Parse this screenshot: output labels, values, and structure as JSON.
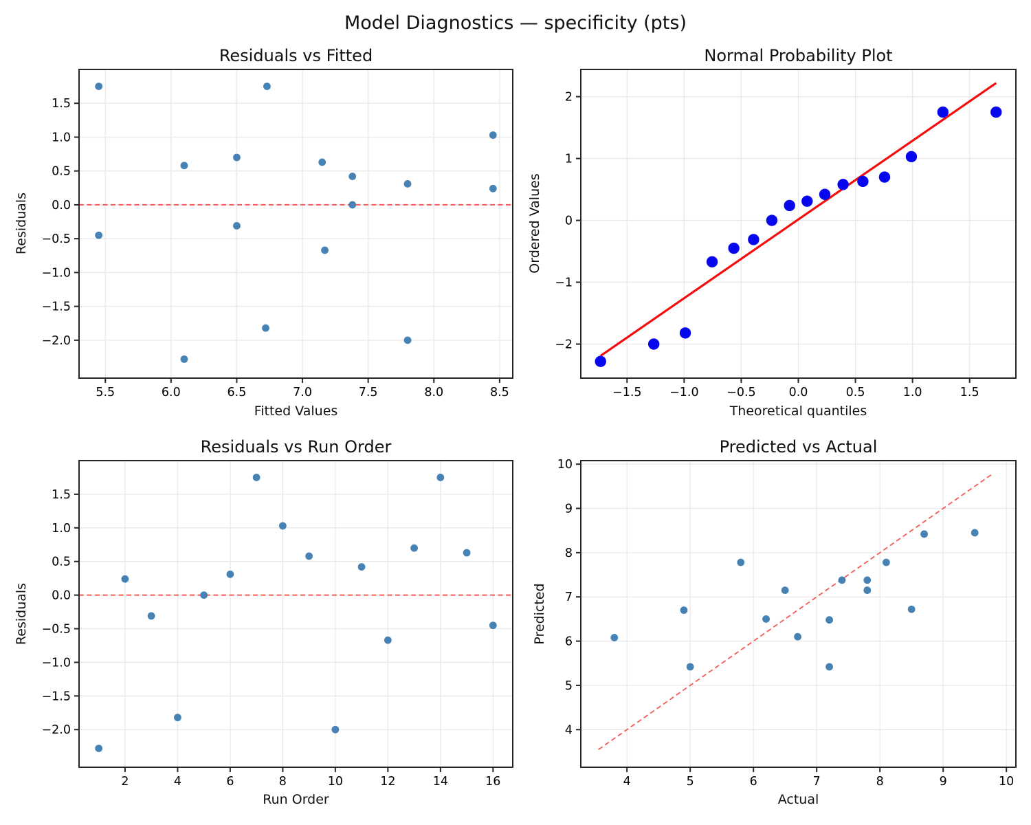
{
  "suptitle": "Model Diagnostics — specificity (pts)",
  "colors": {
    "scatter": "#4682B4",
    "normal": "#0707EE",
    "fit": "#F50D0D",
    "ref": "#F55A55",
    "grid": "#E8E8E8",
    "spine": "#262626",
    "text": "#000000"
  },
  "chart_data": [
    {
      "id": "residuals-vs-fitted",
      "type": "scatter",
      "title": "Residuals vs Fitted",
      "xlabel": "Fitted Values",
      "ylabel": "Residuals",
      "xlim": [
        5.3,
        8.6
      ],
      "ylim": [
        -2.56,
        2.0
      ],
      "grid": true,
      "xticks": {
        "values": [
          5.5,
          6.0,
          6.5,
          7.0,
          7.5,
          8.0,
          8.5
        ],
        "labels": [
          "5.5",
          "6.0",
          "6.5",
          "7.0",
          "7.5",
          "8.0",
          "8.5"
        ]
      },
      "yticks": {
        "values": [
          1.5,
          1.0,
          0.5,
          0.0,
          -0.5,
          -1.0,
          -1.5,
          -2.0
        ],
        "labels": [
          "1.5",
          "1.0",
          "0.5",
          "0.0",
          "−0.5",
          "−1.0",
          "−1.5",
          "−2.0"
        ]
      },
      "marker": {
        "r": 5.4,
        "color_key": "scatter"
      },
      "points": [
        [
          5.45,
          1.75
        ],
        [
          6.73,
          1.75
        ],
        [
          8.45,
          1.03
        ],
        [
          6.5,
          0.7
        ],
        [
          7.15,
          0.63
        ],
        [
          6.1,
          0.58
        ],
        [
          7.38,
          0.42
        ],
        [
          7.8,
          0.31
        ],
        [
          8.45,
          0.24
        ],
        [
          7.38,
          0.0
        ],
        [
          6.5,
          -0.31
        ],
        [
          5.45,
          -0.45
        ],
        [
          7.17,
          -0.67
        ],
        [
          6.72,
          -1.82
        ],
        [
          7.8,
          -2.0
        ],
        [
          6.1,
          -2.28
        ]
      ],
      "lines": [
        {
          "x1": 5.3,
          "y1": 0,
          "x2": 8.6,
          "y2": 0,
          "style": "dashed",
          "color_key": "ref",
          "width": 2
        }
      ]
    },
    {
      "id": "normal-probability-plot",
      "type": "scatter",
      "title": "Normal Probability Plot",
      "xlabel": "Theoretical quantiles",
      "ylabel": "Ordered Values",
      "xlim": [
        -1.905,
        1.905
      ],
      "ylim": [
        -2.55,
        2.44
      ],
      "grid": true,
      "xticks": {
        "values": [
          -1.5,
          -1.0,
          -0.5,
          0.0,
          0.5,
          1.0,
          1.5
        ],
        "labels": [
          "−1.5",
          "−1.0",
          "−0.5",
          "0.0",
          "0.5",
          "1.0",
          "1.5"
        ]
      },
      "yticks": {
        "values": [
          2,
          1,
          0,
          -1,
          -2
        ],
        "labels": [
          "2",
          "1",
          "0",
          "−1",
          "−2"
        ]
      },
      "marker": {
        "r": 8.2,
        "color_key": "normal"
      },
      "points": [
        [
          -1.732,
          -2.28
        ],
        [
          -1.266,
          -2.0
        ],
        [
          -0.99,
          -1.82
        ],
        [
          -0.755,
          -0.67
        ],
        [
          -0.565,
          -0.45
        ],
        [
          -0.392,
          -0.31
        ],
        [
          -0.232,
          0.0
        ],
        [
          -0.077,
          0.24
        ],
        [
          0.077,
          0.31
        ],
        [
          0.232,
          0.42
        ],
        [
          0.392,
          0.58
        ],
        [
          0.565,
          0.63
        ],
        [
          0.755,
          0.7
        ],
        [
          0.99,
          1.03
        ],
        [
          1.266,
          1.75
        ],
        [
          1.732,
          1.75
        ]
      ],
      "lines": [
        {
          "x1": -1.732,
          "y1": -2.19,
          "x2": 1.732,
          "y2": 2.22,
          "style": "solid",
          "color_key": "fit",
          "width": 3.2
        }
      ]
    },
    {
      "id": "residuals-vs-run-order",
      "type": "scatter",
      "title": "Residuals vs Run Order",
      "xlabel": "Run Order",
      "ylabel": "Residuals",
      "xlim": [
        0.25,
        16.75
      ],
      "ylim": [
        -2.56,
        2.0
      ],
      "grid": true,
      "xticks": {
        "values": [
          2,
          4,
          6,
          8,
          10,
          12,
          14,
          16
        ],
        "labels": [
          "2",
          "4",
          "6",
          "8",
          "10",
          "12",
          "14",
          "16"
        ]
      },
      "yticks": {
        "values": [
          1.5,
          1.0,
          0.5,
          0.0,
          -0.5,
          -1.0,
          -1.5,
          -2.0
        ],
        "labels": [
          "1.5",
          "1.0",
          "0.5",
          "0.0",
          "−0.5",
          "−1.0",
          "−1.5",
          "−2.0"
        ]
      },
      "marker": {
        "r": 5.4,
        "color_key": "scatter"
      },
      "points": [
        [
          1,
          -2.28
        ],
        [
          2,
          0.24
        ],
        [
          3,
          -0.31
        ],
        [
          4,
          -1.82
        ],
        [
          5,
          0.0
        ],
        [
          6,
          0.31
        ],
        [
          7,
          1.75
        ],
        [
          8,
          1.03
        ],
        [
          9,
          0.58
        ],
        [
          10,
          -2.0
        ],
        [
          11,
          0.42
        ],
        [
          12,
          -0.67
        ],
        [
          13,
          0.7
        ],
        [
          14,
          1.75
        ],
        [
          15,
          0.63
        ],
        [
          16,
          -0.45
        ]
      ],
      "lines": [
        {
          "x1": 0.25,
          "y1": 0,
          "x2": 16.75,
          "y2": 0,
          "style": "dashed",
          "color_key": "ref",
          "width": 2
        }
      ]
    },
    {
      "id": "predicted-vs-actual",
      "type": "scatter",
      "title": "Predicted vs Actual",
      "xlabel": "Actual",
      "ylabel": "Predicted",
      "xlim": [
        3.27,
        10.15
      ],
      "ylim": [
        3.15,
        10.08
      ],
      "grid": true,
      "xticks": {
        "values": [
          4,
          5,
          6,
          7,
          8,
          9,
          10
        ],
        "labels": [
          "4",
          "5",
          "6",
          "7",
          "8",
          "9",
          "10"
        ]
      },
      "yticks": {
        "values": [
          4,
          5,
          6,
          7,
          8,
          9,
          10
        ],
        "labels": [
          "4",
          "5",
          "6",
          "7",
          "8",
          "9",
          "10"
        ]
      },
      "marker": {
        "r": 5.4,
        "color_key": "scatter"
      },
      "points": [
        [
          3.8,
          6.08
        ],
        [
          4.9,
          6.7
        ],
        [
          5.0,
          5.42
        ],
        [
          5.8,
          7.78
        ],
        [
          6.2,
          6.5
        ],
        [
          6.5,
          7.15
        ],
        [
          6.7,
          6.1
        ],
        [
          7.2,
          6.48
        ],
        [
          7.2,
          5.42
        ],
        [
          7.4,
          7.38
        ],
        [
          7.8,
          7.38
        ],
        [
          7.8,
          7.15
        ],
        [
          8.1,
          7.78
        ],
        [
          8.5,
          6.72
        ],
        [
          8.7,
          8.42
        ],
        [
          9.5,
          8.45
        ]
      ],
      "lines": [
        {
          "x1": 3.55,
          "y1": 3.55,
          "x2": 9.78,
          "y2": 9.78,
          "style": "dashed",
          "color_key": "ref",
          "width": 1.8
        }
      ]
    }
  ]
}
